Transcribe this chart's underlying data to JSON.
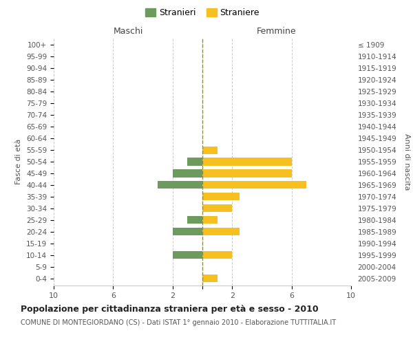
{
  "age_groups": [
    "0-4",
    "5-9",
    "10-14",
    "15-19",
    "20-24",
    "25-29",
    "30-34",
    "35-39",
    "40-44",
    "45-49",
    "50-54",
    "55-59",
    "60-64",
    "65-69",
    "70-74",
    "75-79",
    "80-84",
    "85-89",
    "90-94",
    "95-99",
    "100+"
  ],
  "birth_years": [
    "2005-2009",
    "2000-2004",
    "1995-1999",
    "1990-1994",
    "1985-1989",
    "1980-1984",
    "1975-1979",
    "1970-1974",
    "1965-1969",
    "1960-1964",
    "1955-1959",
    "1950-1954",
    "1945-1949",
    "1940-1944",
    "1935-1939",
    "1930-1934",
    "1925-1929",
    "1920-1924",
    "1915-1919",
    "1910-1914",
    "≤ 1909"
  ],
  "maschi": [
    0,
    0,
    2,
    0,
    2,
    1,
    0,
    0,
    3,
    2,
    1,
    0,
    0,
    0,
    0,
    0,
    0,
    0,
    0,
    0,
    0
  ],
  "femmine": [
    1,
    0,
    2,
    0,
    2.5,
    1,
    2,
    2.5,
    7,
    6,
    6,
    1,
    0,
    0,
    0,
    0,
    0,
    0,
    0,
    0,
    0
  ],
  "color_maschi": "#6d9b5e",
  "color_femmine": "#f5c020",
  "center_line_color": "#8b8b4e",
  "grid_color": "#cccccc",
  "background_color": "#ffffff",
  "title": "Popolazione per cittadinanza straniera per età e sesso - 2010",
  "subtitle": "COMUNE DI MONTEGIORDANO (CS) - Dati ISTAT 1° gennaio 2010 - Elaborazione TUTTITALIA.IT",
  "legend_stranieri": "Stranieri",
  "legend_straniere": "Straniere",
  "xlabel_left": "Maschi",
  "xlabel_right": "Femmine",
  "ylabel_left": "Fasce di età",
  "ylabel_right": "Anni di nascita",
  "xlim": 10
}
